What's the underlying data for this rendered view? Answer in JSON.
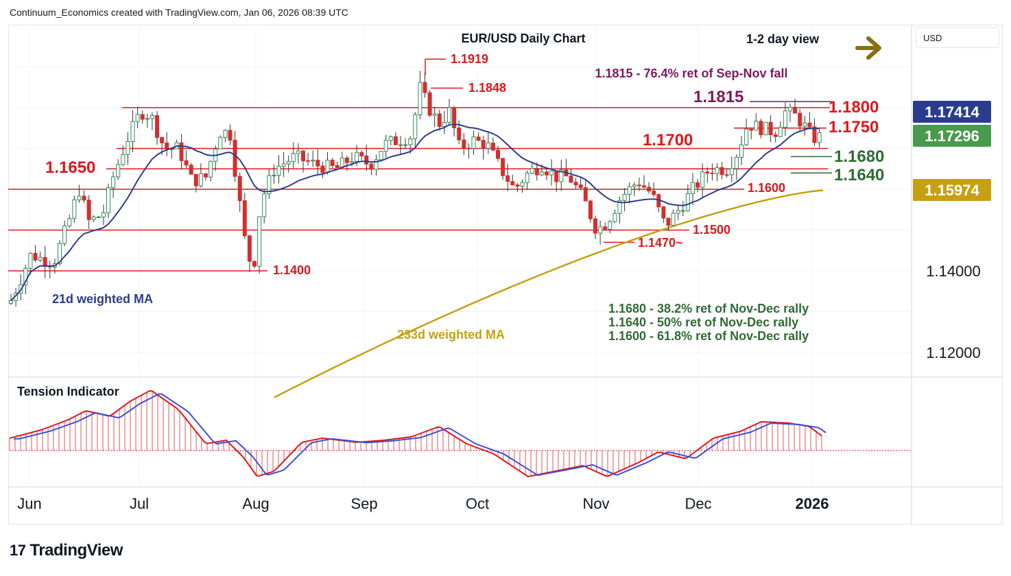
{
  "header": {
    "text": "Continuum_Economics created with TradingView.com, Jan 06, 2026 08:39 UTC"
  },
  "footer": {
    "logo_mark": "17",
    "logo_text": "TradingView"
  },
  "currency_label": "USD",
  "colors": {
    "red": "#e0161b",
    "blue_ma": "#2c3c8c",
    "gold_ma": "#c6a011",
    "green": "#2e6b33",
    "purple": "#7a1a5a",
    "arrow": "#8a6d10",
    "grid": "#f0f3fa"
  },
  "chart_data": {
    "type": "candlestick",
    "title": "EUR/USD Daily Chart",
    "view_label": "1-2 day view",
    "view_arrow_icon": "arrow-right-icon",
    "x_tick_labels": [
      "Jun",
      "Jul",
      "Aug",
      "Sep",
      "Oct",
      "Nov",
      "Dec",
      "2026"
    ],
    "y_axis": {
      "range": [
        1.112,
        1.188
      ],
      "tick_labels": [
        "1.14000",
        "1.12000"
      ]
    },
    "price_badges": [
      {
        "label": "1.17414",
        "value": 1.17414,
        "color": "#2c3c8c"
      },
      {
        "label": "1.17296",
        "value": 1.17296,
        "color": "#4a9a4e"
      },
      {
        "label": "1.15974",
        "value": 1.15974,
        "color": "#c6a011"
      }
    ],
    "levels": [
      {
        "label": "1.1919",
        "value": 1.1919,
        "color": "red"
      },
      {
        "label": "1.1848",
        "value": 1.1848,
        "color": "red"
      },
      {
        "label": "1.1815",
        "value": 1.1815,
        "color": "purple"
      },
      {
        "label": "1.1800",
        "value": 1.18,
        "color": "red"
      },
      {
        "label": "1.1750",
        "value": 1.175,
        "color": "red"
      },
      {
        "label": "1.1700",
        "value": 1.17,
        "color": "red"
      },
      {
        "label": "1.1680",
        "value": 1.168,
        "color": "green"
      },
      {
        "label": "1.1650",
        "value": 1.165,
        "color": "red"
      },
      {
        "label": "1.1640",
        "value": 1.164,
        "color": "green"
      },
      {
        "label": "1.1600",
        "value": 1.16,
        "color": "red"
      },
      {
        "label": "1.1500",
        "value": 1.15,
        "color": "red"
      },
      {
        "label": "1.1470~",
        "value": 1.147,
        "color": "red"
      },
      {
        "label": "1.1400",
        "value": 1.14,
        "color": "red"
      }
    ],
    "annotations": [
      "1.1815 - 76.4% ret of Sep-Nov fall",
      "1.1680 - 38.2% ret of Nov-Dec rally",
      "1.1640 - 50% ret of Nov-Dec rally",
      "1.1600 - 61.8% ret of Nov-Dec rally"
    ],
    "series": [
      {
        "name": "21d weighted MA",
        "current": 1.17414
      },
      {
        "name": "233d weighted MA",
        "current": 1.15974
      }
    ],
    "indicator": {
      "name": "Tension Indicator"
    }
  }
}
